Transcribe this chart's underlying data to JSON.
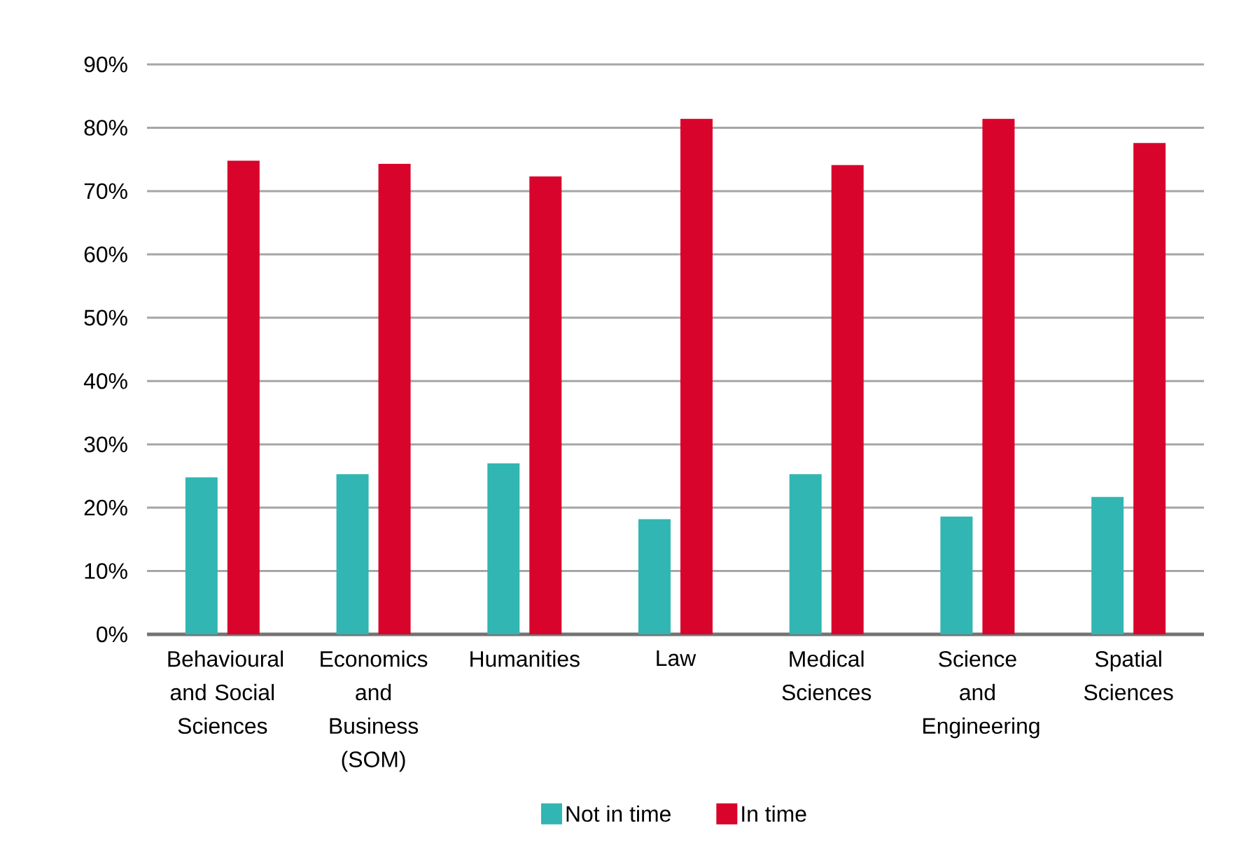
{
  "chart_data": {
    "type": "bar",
    "categories": [
      "Behavioural and Social Sciences",
      "Economics and Business (SOM)",
      "Humanities",
      "Law",
      "Medical Sciences",
      "Science and Engineering",
      "Spatial Sciences"
    ],
    "series": [
      {
        "name": "Not in time",
        "color": "#31b6b3",
        "values": [
          24.8,
          25.3,
          27.0,
          18.2,
          25.3,
          18.6,
          21.7
        ]
      },
      {
        "name": "In time",
        "color": "#d9042b",
        "values": [
          74.8,
          74.3,
          72.3,
          81.4,
          74.1,
          81.4,
          77.6
        ]
      }
    ],
    "ylim": [
      0,
      90
    ],
    "yticks": [
      {
        "value": 0,
        "label": "0%"
      },
      {
        "value": 10,
        "label": "10%"
      },
      {
        "value": 20,
        "label": "20%"
      },
      {
        "value": 30,
        "label": "30%"
      },
      {
        "value": 40,
        "label": "40%"
      },
      {
        "value": 50,
        "label": "50%"
      },
      {
        "value": 60,
        "label": "60%"
      },
      {
        "value": 70,
        "label": "70%"
      },
      {
        "value": 80,
        "label": "80%"
      },
      {
        "value": 90,
        "label": "90%"
      }
    ],
    "grid": "y",
    "legend": "bottom"
  }
}
